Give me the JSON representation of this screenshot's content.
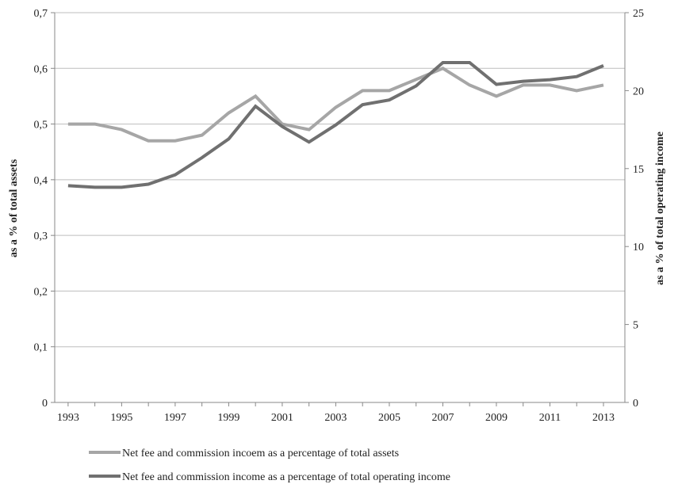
{
  "chart_data": {
    "type": "line",
    "title": "",
    "x": [
      1993,
      1994,
      1995,
      1996,
      1997,
      1998,
      1999,
      2000,
      2001,
      2002,
      2003,
      2004,
      2005,
      2006,
      2007,
      2008,
      2009,
      2010,
      2011,
      2012,
      2013
    ],
    "x_tick_labels": [
      "1993",
      "1995",
      "1997",
      "1999",
      "2001",
      "2003",
      "2005",
      "2007",
      "2009",
      "2011",
      "2013"
    ],
    "ylabel_left": "as a % of total assets",
    "ylabel_right": "as a % of total operating income",
    "ylim_left": [
      0,
      0.7
    ],
    "ylim_right": [
      0,
      25
    ],
    "y_left_tick_labels": [
      "0",
      "0,1",
      "0,2",
      "0,3",
      "0,4",
      "0,5",
      "0,6",
      "0,7"
    ],
    "y_right_tick_labels": [
      "0",
      "5",
      "10",
      "15",
      "20",
      "25"
    ],
    "grid": true,
    "legend_position": "bottom",
    "series": [
      {
        "name": "Net fee and commission incoem as a percentage of total assets",
        "axis": "left",
        "color": "#a6a6a6",
        "values": [
          0.5,
          0.5,
          0.49,
          0.47,
          0.47,
          0.48,
          0.52,
          0.55,
          0.5,
          0.49,
          0.53,
          0.56,
          0.56,
          0.58,
          0.6,
          0.57,
          0.55,
          0.57,
          0.57,
          0.56,
          0.57
        ]
      },
      {
        "name": "Net fee and commission income as a percentage of total operating income",
        "axis": "right",
        "color": "#707070",
        "values": [
          13.9,
          13.8,
          13.8,
          14.0,
          14.6,
          15.7,
          16.9,
          19.0,
          17.7,
          16.7,
          17.8,
          19.1,
          19.4,
          20.3,
          21.8,
          21.8,
          20.4,
          20.6,
          20.7,
          20.9,
          21.6
        ]
      }
    ]
  }
}
